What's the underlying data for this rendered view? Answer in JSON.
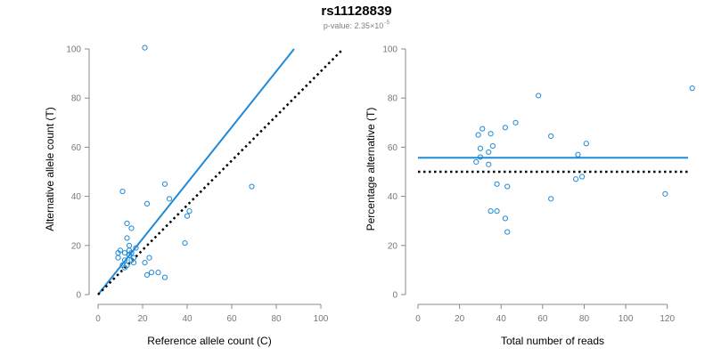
{
  "header": {
    "title": "rs11128839",
    "subtitle_prefix": "p-value: 2.35×10",
    "subtitle_exponent": "−5"
  },
  "colors": {
    "points": "#1f8ad8",
    "fit_line": "#1f8ad8",
    "reference_line": "#000000",
    "axis": "#888888"
  },
  "chart_data": [
    {
      "type": "scatter",
      "xlabel": "Reference allele count (C)",
      "ylabel": "Alternative allele count (T)",
      "xlim": [
        0,
        100
      ],
      "ylim": [
        0,
        100
      ],
      "xticks": [
        0,
        20,
        40,
        60,
        80,
        100
      ],
      "yticks": [
        0,
        20,
        40,
        60,
        80,
        100
      ],
      "points": [
        [
          21,
          100.5
        ],
        [
          11,
          42
        ],
        [
          9,
          17
        ],
        [
          9,
          15
        ],
        [
          10,
          18
        ],
        [
          12,
          17
        ],
        [
          13,
          23
        ],
        [
          14,
          16
        ],
        [
          12,
          14
        ],
        [
          13,
          12
        ],
        [
          15,
          17
        ],
        [
          16,
          13
        ],
        [
          16,
          15
        ],
        [
          13,
          29
        ],
        [
          15,
          27
        ],
        [
          11,
          12
        ],
        [
          12,
          11
        ],
        [
          14,
          20
        ],
        [
          14,
          18
        ],
        [
          15,
          14
        ],
        [
          17,
          19
        ],
        [
          21,
          13
        ],
        [
          22,
          37
        ],
        [
          22,
          8
        ],
        [
          23,
          15
        ],
        [
          24,
          9
        ],
        [
          27,
          9
        ],
        [
          30,
          45
        ],
        [
          30,
          7
        ],
        [
          32,
          39
        ],
        [
          39,
          21
        ],
        [
          40,
          32
        ],
        [
          41,
          34
        ],
        [
          69,
          44
        ]
      ],
      "lines": [
        {
          "name": "fit",
          "style": "solid",
          "from": [
            0,
            0
          ],
          "to": [
            88,
            100
          ]
        },
        {
          "name": "equal",
          "style": "dotted",
          "from": [
            0,
            0
          ],
          "to": [
            110,
            100
          ]
        }
      ],
      "grid": false
    },
    {
      "type": "scatter",
      "xlabel": "Total number of reads",
      "ylabel": "Percentage alternative (T)",
      "xlim": [
        0,
        130
      ],
      "ylim": [
        0,
        100
      ],
      "xticks": [
        0,
        20,
        40,
        60,
        80,
        100,
        120
      ],
      "yticks": [
        0,
        20,
        40,
        60,
        80,
        100
      ],
      "points": [
        [
          132,
          84
        ],
        [
          58,
          81
        ],
        [
          47,
          70
        ],
        [
          31,
          67.5
        ],
        [
          35,
          65.5
        ],
        [
          29,
          65
        ],
        [
          64,
          64.5
        ],
        [
          42,
          68
        ],
        [
          36,
          60.5
        ],
        [
          30,
          59.5
        ],
        [
          81,
          61.5
        ],
        [
          34,
          58
        ],
        [
          30,
          56
        ],
        [
          28,
          54
        ],
        [
          34,
          53
        ],
        [
          77,
          57
        ],
        [
          38,
          45
        ],
        [
          43,
          44
        ],
        [
          79,
          48
        ],
        [
          76,
          47
        ],
        [
          64,
          39
        ],
        [
          119,
          41
        ],
        [
          35,
          34
        ],
        [
          38,
          34
        ],
        [
          42,
          31
        ],
        [
          43,
          25.5
        ]
      ],
      "lines": [
        {
          "name": "fit",
          "style": "solid",
          "from": [
            0,
            55.7
          ],
          "to": [
            130,
            55.7
          ]
        },
        {
          "name": "equal",
          "style": "dotted",
          "from": [
            0,
            50
          ],
          "to": [
            130,
            50
          ]
        }
      ],
      "grid": false
    }
  ]
}
